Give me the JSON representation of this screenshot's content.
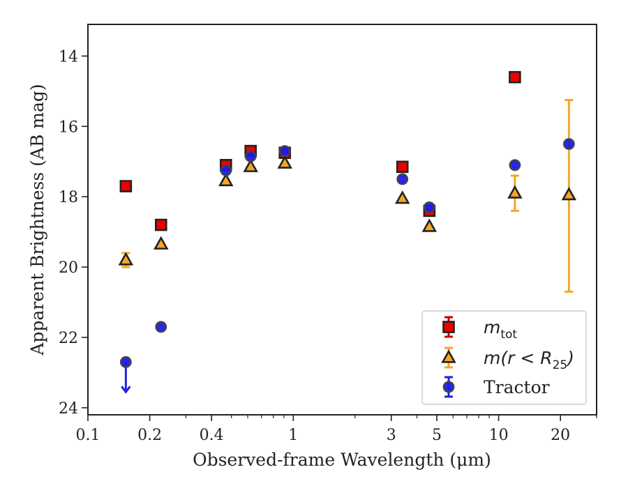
{
  "chart_data": {
    "type": "scatter",
    "xlabel": "Observed-frame Wavelength (μm)",
    "ylabel": "Apparent Brightness (AB mag)",
    "x_scale": "log",
    "xlim": [
      0.1,
      30
    ],
    "ylim": [
      24.2,
      13.1
    ],
    "y_inverted": true,
    "x_ticks": [
      {
        "value": 0.1,
        "label": "0.1"
      },
      {
        "value": 0.2,
        "label": "0.2"
      },
      {
        "value": 0.4,
        "label": "0.4"
      },
      {
        "value": 1,
        "label": "1"
      },
      {
        "value": 3,
        "label": "3"
      },
      {
        "value": 5,
        "label": "5"
      },
      {
        "value": 10,
        "label": "10"
      },
      {
        "value": 20,
        "label": "20"
      }
    ],
    "y_ticks": [
      {
        "value": 14,
        "label": "14"
      },
      {
        "value": 16,
        "label": "16"
      },
      {
        "value": 18,
        "label": "18"
      },
      {
        "value": 20,
        "label": "20"
      },
      {
        "value": 22,
        "label": "22"
      },
      {
        "value": 24,
        "label": "24"
      }
    ],
    "grid": false,
    "legend": {
      "position": "lower-right",
      "entries": [
        {
          "main": "m",
          "sub": "tot"
        },
        {
          "main": "m(r < R",
          "sub": "25",
          "tail": ")"
        },
        {
          "main": "Tractor"
        }
      ]
    },
    "series": [
      {
        "legend_index": 0,
        "marker": "square",
        "fill": "#ee0000",
        "edge": "#222222",
        "err_color": "#cc0000",
        "points": [
          {
            "x": 0.153,
            "y": 17.7,
            "err": 0.05
          },
          {
            "x": 0.227,
            "y": 18.8,
            "err": 0.05
          },
          {
            "x": 0.47,
            "y": 17.1,
            "err": 0.05
          },
          {
            "x": 0.62,
            "y": 16.7,
            "err": 0.05
          },
          {
            "x": 0.91,
            "y": 16.75,
            "err": 0.05
          },
          {
            "x": 3.4,
            "y": 17.15,
            "err": 0.05
          },
          {
            "x": 4.6,
            "y": 18.4,
            "err": 0.05
          },
          {
            "x": 12.0,
            "y": 14.6,
            "err": 0.05
          }
        ]
      },
      {
        "legend_index": 1,
        "marker": "triangle",
        "fill": "#f5a623",
        "edge": "#222222",
        "err_color": "#f5a623",
        "points": [
          {
            "x": 0.153,
            "y": 19.8,
            "err": 0.2
          },
          {
            "x": 0.227,
            "y": 19.35,
            "err": 0.05
          },
          {
            "x": 0.47,
            "y": 17.55,
            "err": 0.05
          },
          {
            "x": 0.62,
            "y": 17.15,
            "err": 0.05
          },
          {
            "x": 0.91,
            "y": 17.05,
            "err": 0.05
          },
          {
            "x": 3.4,
            "y": 18.05,
            "err": 0.05
          },
          {
            "x": 4.6,
            "y": 18.85,
            "err": 0.05
          },
          {
            "x": 12.0,
            "y": 17.9,
            "err": 0.5
          },
          {
            "x": 22.0,
            "y": 17.95,
            "err_lo": 2.7,
            "err_hi": 2.75
          }
        ]
      },
      {
        "legend_index": 2,
        "marker": "circle",
        "fill": "#1a1aee",
        "edge": "#444444",
        "err_color": "#2222dd",
        "points": [
          {
            "x": 0.153,
            "y": 22.7,
            "upper_limit": true
          },
          {
            "x": 0.227,
            "y": 21.7
          },
          {
            "x": 0.47,
            "y": 17.25
          },
          {
            "x": 0.62,
            "y": 16.85
          },
          {
            "x": 0.91,
            "y": 16.7
          },
          {
            "x": 3.4,
            "y": 17.5
          },
          {
            "x": 4.6,
            "y": 18.3
          },
          {
            "x": 12.0,
            "y": 17.1
          },
          {
            "x": 22.0,
            "y": 16.5
          }
        ]
      }
    ]
  }
}
